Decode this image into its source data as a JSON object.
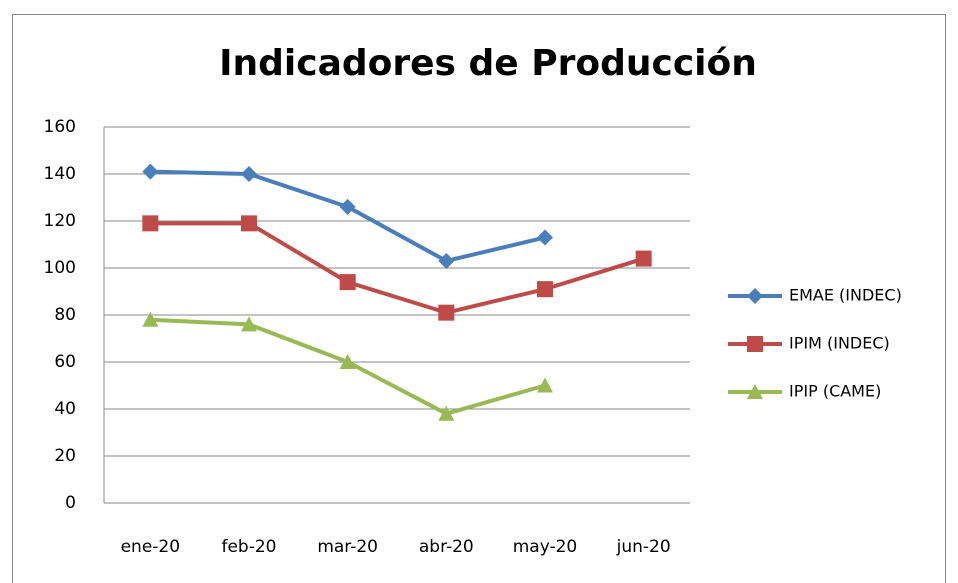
{
  "chart_data": {
    "type": "line",
    "title": "Indicadores de Producción",
    "categories": [
      "ene-20",
      "feb-20",
      "mar-20",
      "abr-20",
      "may-20",
      "jun-20"
    ],
    "series": [
      {
        "name": "EMAE (INDEC)",
        "color": "#4a7ebb",
        "marker": "diamond",
        "values": [
          141,
          140,
          126,
          103,
          113,
          null
        ]
      },
      {
        "name": "IPIM (INDEC)",
        "color": "#be4b48",
        "marker": "square",
        "values": [
          119,
          119,
          94,
          81,
          91,
          104
        ]
      },
      {
        "name": "IPIP (CAME)",
        "color": "#98b954",
        "marker": "triangle",
        "values": [
          78,
          76,
          60,
          38,
          50,
          null
        ]
      }
    ],
    "ylim": [
      0,
      160
    ],
    "yticks": [
      0,
      20,
      40,
      60,
      80,
      100,
      120,
      140,
      160
    ],
    "grid": true,
    "legend": "right"
  }
}
